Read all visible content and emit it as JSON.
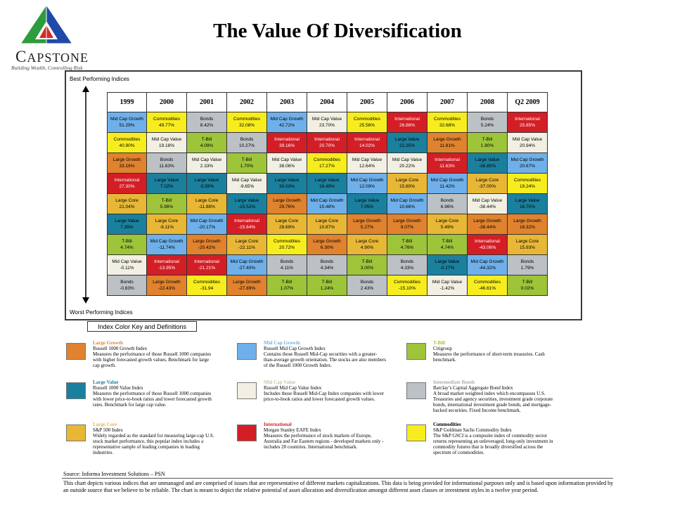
{
  "logo": {
    "name_initial": "C",
    "name_rest": "APSTONE",
    "tagline": "Building Wealth, Controlling Risk"
  },
  "title": "The Value Of Diversification",
  "best_label": "Best Performing Indices",
  "worst_label": "Worst Performing Indices",
  "key_label": "Index Color Key and Definitions",
  "colors": {
    "Mid Cap Growth": "#6fb0ea",
    "Commodities": "#f7ed1e",
    "Bonds": "#bcc1c6",
    "International": "#d41e26",
    "Mid Cap Value": "#f2f0e3",
    "T-Bill": "#9ec43a",
    "Large Growth": "#e0822e",
    "Large Value": "#1b809d",
    "Large Core": "#e8b736"
  },
  "chart_data": {
    "type": "table",
    "title": "The Value Of Diversification",
    "columns": [
      "1999",
      "2000",
      "2001",
      "2002",
      "2003",
      "2004",
      "2005",
      "2006",
      "2007",
      "2008",
      "Q2 2009"
    ],
    "ranks": [
      [
        [
          "Mid Cap Growth",
          "51.29%"
        ],
        [
          "Commodities",
          "49.77%"
        ],
        [
          "Bonds",
          "8.42%"
        ],
        [
          "Commodities",
          "32.08%"
        ],
        [
          "Mid Cap Growth",
          "42.72%"
        ],
        [
          "Mid Cap Value",
          "23.70%"
        ],
        [
          "Commodities",
          "25.56%"
        ],
        [
          "International",
          "26.86%"
        ],
        [
          "Commodities",
          "32.68%"
        ],
        [
          "Bonds",
          "5.24%"
        ],
        [
          "International",
          "25.85%"
        ]
      ],
      [
        [
          "Commodities",
          "40.90%"
        ],
        [
          "Mid Cap Value",
          "19.18%"
        ],
        [
          "T-Bill",
          "4.09%"
        ],
        [
          "Bonds",
          "10.27%"
        ],
        [
          "International",
          "39.16%"
        ],
        [
          "International",
          "20.70%"
        ],
        [
          "International",
          "14.02%"
        ],
        [
          "Large Value",
          "22.25%"
        ],
        [
          "Large Growth",
          "11.81%"
        ],
        [
          "T-Bill",
          "1.80%"
        ],
        [
          "Mid Cap Value",
          "20.94%"
        ]
      ],
      [
        [
          "Large Growth",
          "33.16%"
        ],
        [
          "Bonds",
          "11.63%"
        ],
        [
          "Mid Cap Value",
          "2.33%"
        ],
        [
          "T-Bill",
          "1.70%"
        ],
        [
          "Mid Cap Value",
          "38.06%"
        ],
        [
          "Commodities",
          "17.27%"
        ],
        [
          "Mid Cap Value",
          "12.64%"
        ],
        [
          "Mid Cap Value",
          "20.22%"
        ],
        [
          "International",
          "11.63%"
        ],
        [
          "Large Value",
          "-36.85%"
        ],
        [
          "Mid Cap Growth",
          "20.67%"
        ]
      ],
      [
        [
          "International",
          "27.30%"
        ],
        [
          "Large Value",
          "7.02%"
        ],
        [
          "Large Value",
          "-5.59%"
        ],
        [
          "Mid Cap Value",
          "-9.65%"
        ],
        [
          "Large Value",
          "30.03%"
        ],
        [
          "Large Value",
          "16.49%"
        ],
        [
          "Mid Cap Growth",
          "12.09%"
        ],
        [
          "Large Core",
          "15.80%"
        ],
        [
          "Mid Cap Growth",
          "11.42%"
        ],
        [
          "Large Core",
          "-37.00%"
        ],
        [
          "Commodities",
          "19.24%"
        ]
      ],
      [
        [
          "Large Core",
          "21.04%"
        ],
        [
          "T-Bill",
          "5.96%"
        ],
        [
          "Large Core",
          "-11.88%"
        ],
        [
          "Large Value",
          "-15.52%"
        ],
        [
          "Large Growth",
          "29.76%"
        ],
        [
          "Mid Cap Growth",
          "15.48%"
        ],
        [
          "Large Value",
          "7.05%"
        ],
        [
          "Mid Cap Growth",
          "10.66%"
        ],
        [
          "Bonds",
          "6.96%"
        ],
        [
          "Mid Cap Value",
          "-38.44%"
        ],
        [
          "Large Value",
          "16.70%"
        ]
      ],
      [
        [
          "Large Value",
          "7.35%"
        ],
        [
          "Large Core",
          "-9.11%"
        ],
        [
          "Mid Cap Growth",
          "-20.17%"
        ],
        [
          "International",
          "-15.64%"
        ],
        [
          "Large Core",
          "28.69%"
        ],
        [
          "Large Core",
          "10.87%"
        ],
        [
          "Large Growth",
          "5.27%"
        ],
        [
          "Large Growth",
          "9.07%"
        ],
        [
          "Large Core",
          "5.49%"
        ],
        [
          "Large Growth",
          "-38.44%"
        ],
        [
          "Large Growth",
          "16.32%"
        ]
      ],
      [
        [
          "T-Bill",
          "4.74%"
        ],
        [
          "Mid Cap Growth",
          "-11.74%"
        ],
        [
          "Large Growth",
          "-20.42%"
        ],
        [
          "Large Core",
          "-22.11%"
        ],
        [
          "Commodities",
          "20.72%"
        ],
        [
          "Large Growth",
          "6.30%"
        ],
        [
          "Large Core",
          "4.90%"
        ],
        [
          "T-Bill",
          "4.76%"
        ],
        [
          "T-Bill",
          "4.74%"
        ],
        [
          "International",
          "-43.06%"
        ],
        [
          "Large Core",
          "15.93%"
        ]
      ],
      [
        [
          "Mid Cap Value",
          "-0.11%"
        ],
        [
          "International",
          "-13.95%"
        ],
        [
          "International",
          "-21.21%"
        ],
        [
          "Mid Cap Growth",
          "-27.40%"
        ],
        [
          "Bonds",
          "4.11%"
        ],
        [
          "Bonds",
          "4.34%"
        ],
        [
          "T-Bill",
          "3.00%"
        ],
        [
          "Bonds",
          "4.33%"
        ],
        [
          "Large Value",
          "-0.17%"
        ],
        [
          "Mid Cap Growth",
          "-44.32%"
        ],
        [
          "Bonds",
          "1.79%"
        ]
      ],
      [
        [
          "Bonds",
          "-0.83%"
        ],
        [
          "Large Growth",
          "-22.43%"
        ],
        [
          "Commodities",
          "-31.94"
        ],
        [
          "Large Growth",
          "-27.89%"
        ],
        [
          "T-Bill",
          "1.07%"
        ],
        [
          "T-Bill",
          "1.24%"
        ],
        [
          "Bonds",
          "2.43%"
        ],
        [
          "Commodities",
          "-15.10%"
        ],
        [
          "Mid Cap Value",
          "-1.42%"
        ],
        [
          "Commodities",
          "-46.61%"
        ],
        [
          "T-Bill",
          "0.02%"
        ]
      ]
    ]
  },
  "legend": [
    {
      "key": "Large Growth",
      "name": "Large Growth",
      "name_color": "#e0822e",
      "sub": "Russell 1000 Growth Index",
      "desc": "Measures the performance of those Russell 1000 companies with higher forecasted growth values. Benchmark for large cap growth."
    },
    {
      "key": "Mid Cap Growth",
      "name": "Mid Cap Growth",
      "name_color": "#6fb0ea",
      "sub": "Russell Mid Cap Growth Index",
      "desc": "Contains those Russell Mid-Cap securities with a greater-than-average growth orientation. The stocks are also members of the Russell 1000 Growth Index."
    },
    {
      "key": "T-Bill",
      "name": "T-Bill",
      "name_color": "#9ec43a",
      "sub": "Citigroup",
      "desc": "Measures the performance of short-term treasuries. Cash benchmark."
    },
    {
      "key": "Large Value",
      "name": "Large Value",
      "name_color": "#1b809d",
      "sub": "Russell 1000 Value Index",
      "desc": "Measures the performance of those Russell 1000 companies with lower price-to-book ratios and lower forecasted growth rates. Benchmark for large cap value."
    },
    {
      "key": "Mid Cap Value",
      "name": "Mid Cap Value",
      "name_color": "#c8c3a8",
      "sub": "Russell Mid Cap Value Index",
      "desc": "Includes those Russell Mid-Cap Index companies with lower price-to-book ratios and lower forecasted growth values."
    },
    {
      "key": "Bonds",
      "name": "Intermediate Bonds",
      "name_color": "#a8adb2",
      "sub": "Barclay’s Capital Aggregate Bond Index",
      "desc": "A broad market weighted index which encompasses U.S. Treasuries and agency securities, investment grade corporate bonds, international investment grade bonds, and mortgage-backed securities. Fixed Income benchmark."
    },
    {
      "key": "Large Core",
      "name": "Large Core",
      "name_color": "#e8b736",
      "sub": "S&P 500 Index",
      "desc": "Widely regarded as the standard for measuring large-cap U.S. stock market performance, this popular index includes a representative sample of leading companies in leading industries."
    },
    {
      "key": "International",
      "name": "International",
      "name_color": "#d41e26",
      "sub": "Morgan Stanley EAFE Index",
      "desc": "Measures the performance of stock markets of Europe, Australia and Far Eastern regions - developed markets only - includes 20 countries. International benchmark."
    },
    {
      "key": "Commodities",
      "name": "Commodities",
      "name_color": "#000000",
      "sub": "S&P Goldman Sachs Commodity Index",
      "desc": "The S&P GSCI is a composite index of commodity sector returns representing an unleveraged, long-only investment in commodity futures that is broadly diversified across the spectrum of commodities."
    }
  ],
  "source": "Source: Informa Investment Solutions – PSN",
  "disclaimer": "This chart depicts various indices that are unmanaged and are comprised of issues that are representative of different markets capitalizations. This data is being provided for informational purposes only and is based upon information provided by an outside source that we believe to be reliable. The chart is meant to depict the relative potential of asset allocation and diversification amongst different asset classes or investment styles in a twelve year period."
}
